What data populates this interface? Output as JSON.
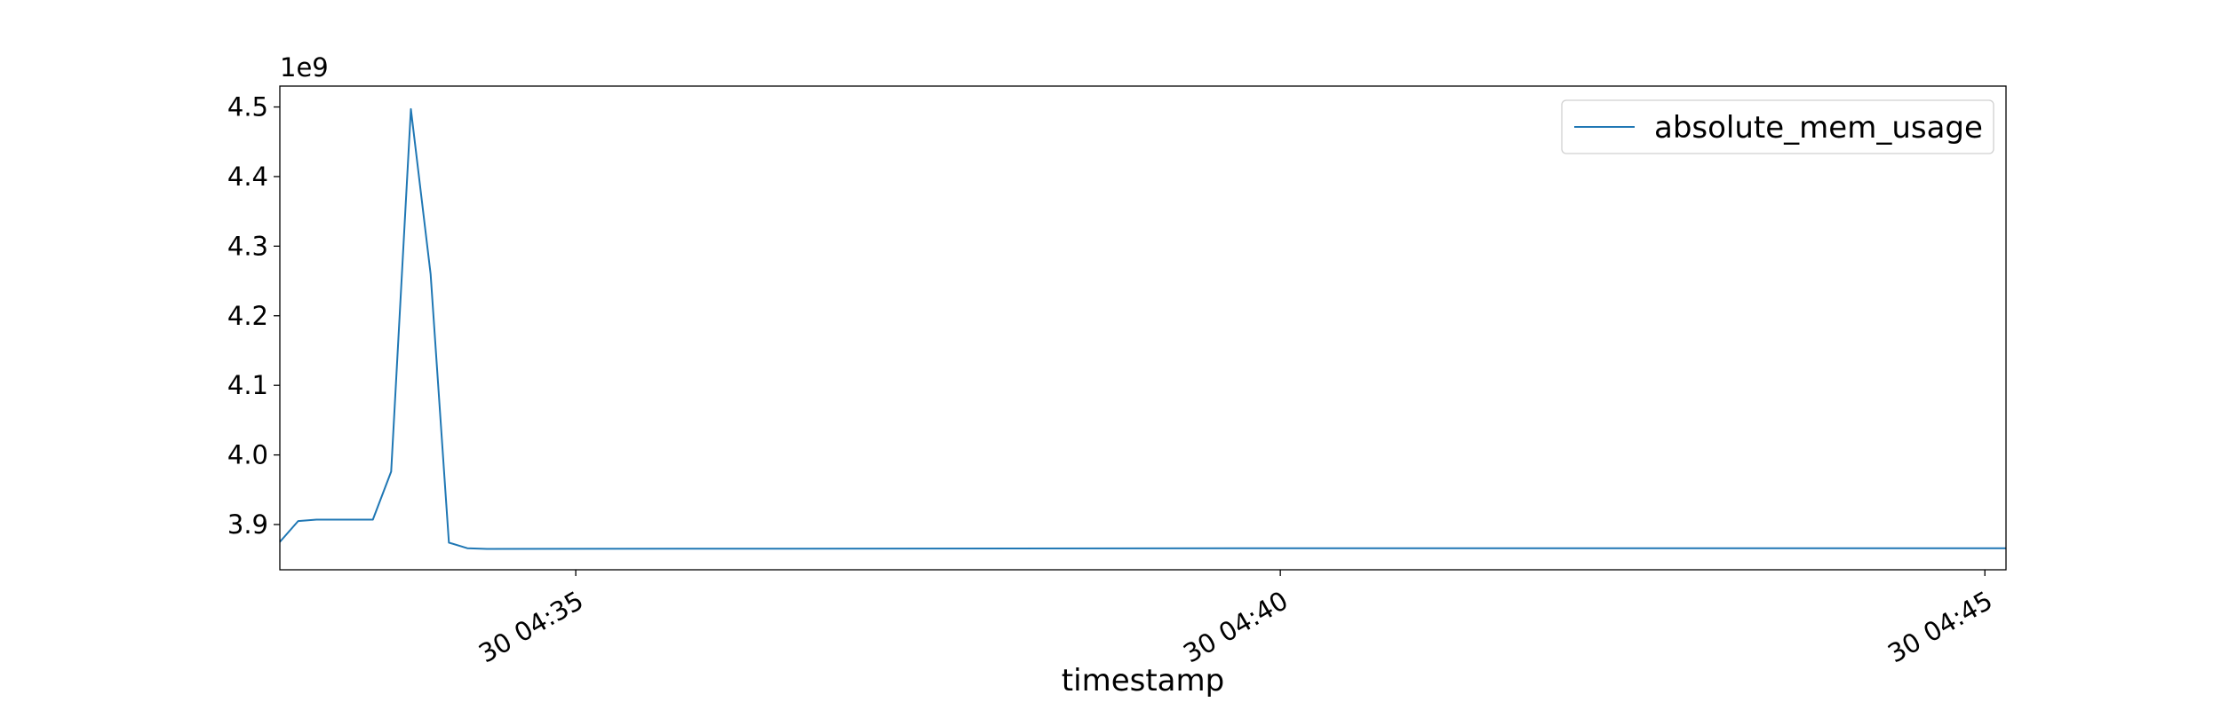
{
  "chart_data": {
    "type": "line",
    "xlabel": "timestamp",
    "ylabel": "",
    "y_offset_label": "1e9",
    "x_domain_minutes": [
      32.9,
      45.15
    ],
    "ylim": [
      3.835,
      4.53
    ],
    "x_ticks": [
      {
        "minute": 35,
        "label": "30 04:35"
      },
      {
        "minute": 40,
        "label": "30 04:40"
      },
      {
        "minute": 45,
        "label": "30 04:45"
      }
    ],
    "y_ticks": [
      {
        "value": 3.9,
        "label": "3.9"
      },
      {
        "value": 4.0,
        "label": "4.0"
      },
      {
        "value": 4.1,
        "label": "4.1"
      },
      {
        "value": 4.2,
        "label": "4.2"
      },
      {
        "value": 4.3,
        "label": "4.3"
      },
      {
        "value": 4.4,
        "label": "4.4"
      },
      {
        "value": 4.5,
        "label": "4.5"
      }
    ],
    "grid": false,
    "legend_position": "top-right",
    "series": [
      {
        "name": "absolute_mem_usage",
        "color": "#1f77b4",
        "x_minutes": [
          32.9,
          33.03,
          33.16,
          33.56,
          33.69,
          33.83,
          33.97,
          34.1,
          34.23,
          34.37,
          40.0,
          45.15
        ],
        "values": [
          3.875,
          3.905,
          3.907,
          3.907,
          3.976,
          4.497,
          4.26,
          3.874,
          3.866,
          3.865,
          3.866,
          3.866
        ]
      }
    ]
  }
}
